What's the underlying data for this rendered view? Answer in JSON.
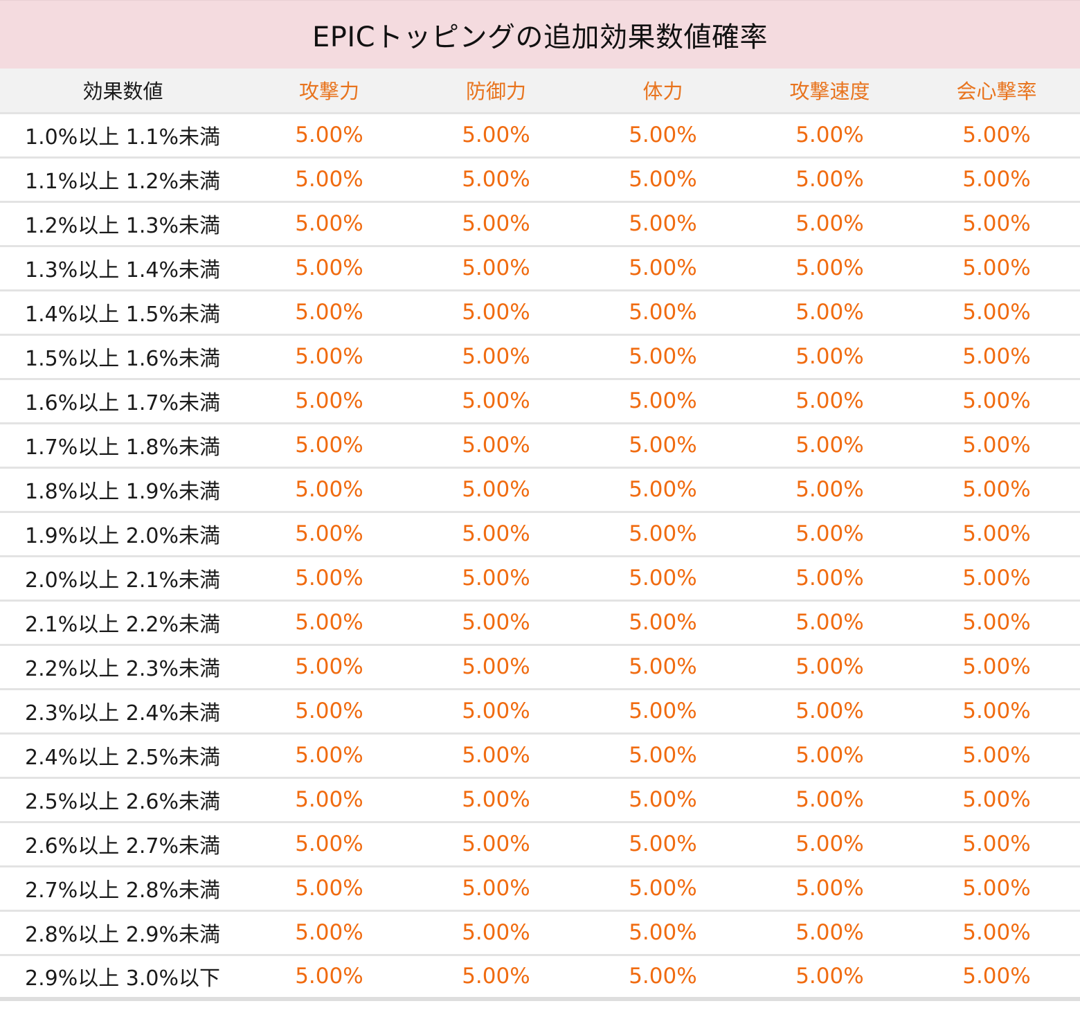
{
  "title": "EPICトッピングの追加効果数値確率",
  "colors": {
    "title_bg": "#f4dbdf",
    "header_bg": "#f2f2f2",
    "accent": "#f06b10",
    "text": "#1a1a1a"
  },
  "headers": [
    "効果数値",
    "攻撃力",
    "防御力",
    "体力",
    "攻撃速度",
    "会心撃率"
  ],
  "rows": [
    {
      "range": "1.0%以上 1.1%未満",
      "values": [
        "5.00%",
        "5.00%",
        "5.00%",
        "5.00%",
        "5.00%"
      ]
    },
    {
      "range": "1.1%以上 1.2%未満",
      "values": [
        "5.00%",
        "5.00%",
        "5.00%",
        "5.00%",
        "5.00%"
      ]
    },
    {
      "range": "1.2%以上 1.3%未満",
      "values": [
        "5.00%",
        "5.00%",
        "5.00%",
        "5.00%",
        "5.00%"
      ]
    },
    {
      "range": "1.3%以上 1.4%未満",
      "values": [
        "5.00%",
        "5.00%",
        "5.00%",
        "5.00%",
        "5.00%"
      ]
    },
    {
      "range": "1.4%以上 1.5%未満",
      "values": [
        "5.00%",
        "5.00%",
        "5.00%",
        "5.00%",
        "5.00%"
      ]
    },
    {
      "range": "1.5%以上 1.6%未満",
      "values": [
        "5.00%",
        "5.00%",
        "5.00%",
        "5.00%",
        "5.00%"
      ]
    },
    {
      "range": "1.6%以上 1.7%未満",
      "values": [
        "5.00%",
        "5.00%",
        "5.00%",
        "5.00%",
        "5.00%"
      ]
    },
    {
      "range": "1.7%以上 1.8%未満",
      "values": [
        "5.00%",
        "5.00%",
        "5.00%",
        "5.00%",
        "5.00%"
      ]
    },
    {
      "range": "1.8%以上 1.9%未満",
      "values": [
        "5.00%",
        "5.00%",
        "5.00%",
        "5.00%",
        "5.00%"
      ]
    },
    {
      "range": "1.9%以上 2.0%未満",
      "values": [
        "5.00%",
        "5.00%",
        "5.00%",
        "5.00%",
        "5.00%"
      ]
    },
    {
      "range": "2.0%以上 2.1%未満",
      "values": [
        "5.00%",
        "5.00%",
        "5.00%",
        "5.00%",
        "5.00%"
      ]
    },
    {
      "range": "2.1%以上 2.2%未満",
      "values": [
        "5.00%",
        "5.00%",
        "5.00%",
        "5.00%",
        "5.00%"
      ]
    },
    {
      "range": "2.2%以上 2.3%未満",
      "values": [
        "5.00%",
        "5.00%",
        "5.00%",
        "5.00%",
        "5.00%"
      ]
    },
    {
      "range": "2.3%以上 2.4%未満",
      "values": [
        "5.00%",
        "5.00%",
        "5.00%",
        "5.00%",
        "5.00%"
      ]
    },
    {
      "range": "2.4%以上 2.5%未満",
      "values": [
        "5.00%",
        "5.00%",
        "5.00%",
        "5.00%",
        "5.00%"
      ]
    },
    {
      "range": "2.5%以上 2.6%未満",
      "values": [
        "5.00%",
        "5.00%",
        "5.00%",
        "5.00%",
        "5.00%"
      ]
    },
    {
      "range": "2.6%以上 2.7%未満",
      "values": [
        "5.00%",
        "5.00%",
        "5.00%",
        "5.00%",
        "5.00%"
      ]
    },
    {
      "range": "2.7%以上 2.8%未満",
      "values": [
        "5.00%",
        "5.00%",
        "5.00%",
        "5.00%",
        "5.00%"
      ]
    },
    {
      "range": "2.8%以上 2.9%未満",
      "values": [
        "5.00%",
        "5.00%",
        "5.00%",
        "5.00%",
        "5.00%"
      ]
    },
    {
      "range": "2.9%以上 3.0%以下",
      "values": [
        "5.00%",
        "5.00%",
        "5.00%",
        "5.00%",
        "5.00%"
      ]
    }
  ]
}
